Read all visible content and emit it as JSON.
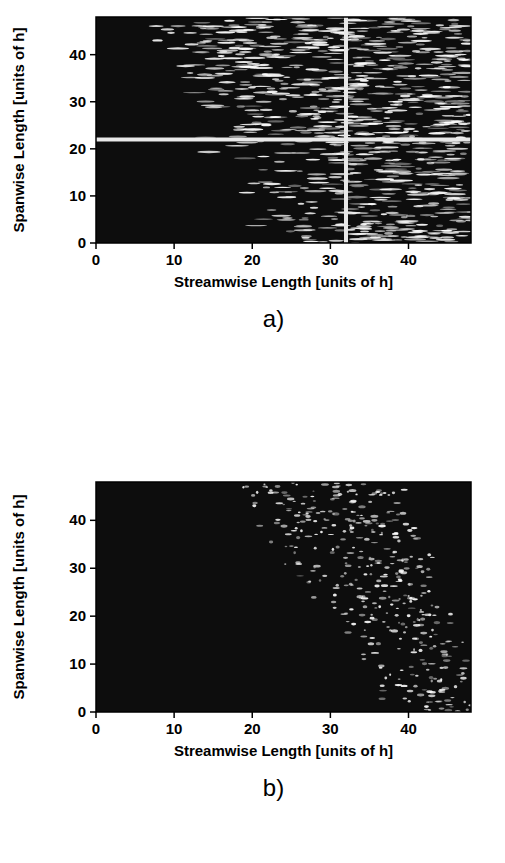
{
  "chart_data": [
    {
      "type": "image",
      "label": "a)",
      "xlabel": "Streamwise Length [units of h]",
      "ylabel": "Spanwise Length [units of h]",
      "xlim": [
        0,
        48
      ],
      "ylim": [
        0,
        48
      ],
      "xticks": [
        0,
        10,
        20,
        30,
        40
      ],
      "yticks": [
        0,
        10,
        20,
        30,
        40
      ],
      "crosshair": {
        "x": 32,
        "y": 22
      }
    },
    {
      "type": "image",
      "label": "b)",
      "xlabel": "Streamwise Length [units of h]",
      "ylabel": "Spanwise Length [units of h]",
      "xlim": [
        0,
        48
      ],
      "ylim": [
        0,
        48
      ],
      "xticks": [
        0,
        10,
        20,
        30,
        40
      ],
      "yticks": [
        0,
        10,
        20,
        30,
        40
      ]
    }
  ]
}
